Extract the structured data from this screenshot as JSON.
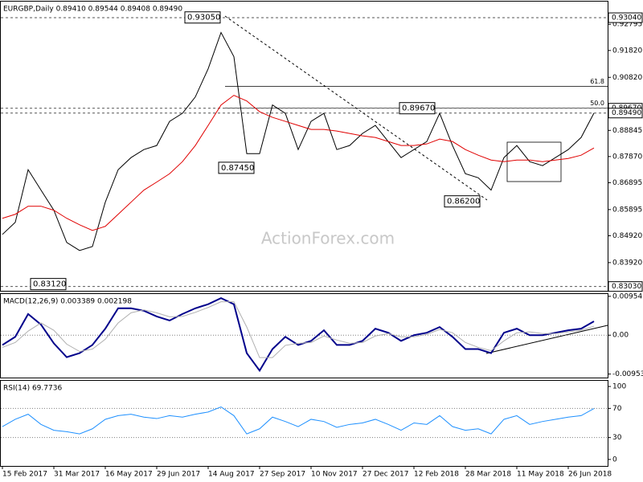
{
  "chart_data": [
    {
      "type": "line",
      "title": "EURGBP,Daily  0.89410 0.89544 0.89408 0.89490",
      "watermark": "ActionForex.com",
      "categories": [
        "15 Feb 2017",
        null,
        null,
        null,
        "31 Mar 2017",
        null,
        null,
        null,
        "16 May 2017",
        null,
        null,
        null,
        "29 Jun 2017",
        null,
        null,
        null,
        "14 Aug 2017",
        null,
        null,
        null,
        "27 Sep 2017",
        null,
        null,
        null,
        "10 Nov 2017",
        null,
        null,
        null,
        "27 Dec 2017",
        null,
        null,
        null,
        "12 Feb 2018",
        null,
        null,
        null,
        "28 Mar 2018",
        null,
        null,
        null,
        "11 May 2018",
        null,
        null,
        null,
        "26 Jun 2018",
        null,
        null
      ],
      "series": [
        {
          "color": "#000000",
          "values": [
            0.8497,
            0.8542,
            0.8738,
            0.8662,
            0.8587,
            0.8467,
            0.8437,
            0.8452,
            0.8617,
            0.8738,
            0.8783,
            0.8813,
            0.8828,
            0.8918,
            0.8948,
            0.9009,
            0.9114,
            0.9249,
            0.9159,
            0.8798,
            0.8798,
            0.8979,
            0.8948,
            0.8813,
            0.8918,
            0.8948,
            0.8813,
            0.8828,
            0.8873,
            0.8903,
            0.8843,
            0.8783,
            0.8813,
            0.8843,
            0.8948,
            0.8828,
            0.8723,
            0.8708,
            0.8662,
            0.8783,
            0.8828,
            0.8768,
            0.8753,
            0.8783,
            0.8813,
            0.8858,
            0.8949
          ]
        },
        {
          "color": "#e00000",
          "values": [
            0.8557,
            0.8572,
            0.8602,
            0.8602,
            0.8587,
            0.8557,
            0.8533,
            0.8512,
            0.8527,
            0.8572,
            0.8617,
            0.8662,
            0.8692,
            0.8723,
            0.8768,
            0.8828,
            0.8903,
            0.8979,
            0.9015,
            0.8994,
            0.8954,
            0.8933,
            0.8918,
            0.8903,
            0.8888,
            0.8888,
            0.8882,
            0.8873,
            0.8864,
            0.8858,
            0.8843,
            0.8828,
            0.8828,
            0.8834,
            0.8852,
            0.8843,
            0.8813,
            0.8792,
            0.8774,
            0.8768,
            0.8774,
            0.8774,
            0.8768,
            0.8774,
            0.878,
            0.8792,
            0.8819
          ]
        }
      ],
      "ylim": [
        0.8287,
        0.9364
      ],
      "yticks": [
        {
          "value": 0.92795,
          "label": "0.92795"
        },
        {
          "value": 0.9182,
          "label": "0.91820"
        },
        {
          "value": 0.9082,
          "label": "0.90820"
        },
        0.88845,
        {
          "value": 0.8787,
          "label": "0.87870"
        },
        0.86895,
        0.85895,
        {
          "value": 0.8492,
          "label": "0.84920"
        },
        {
          "value": 0.8392,
          "label": "0.83920"
        }
      ],
      "price_labels": [
        {
          "value": 0.9304,
          "label": "0.93040"
        },
        {
          "value": 0.8967,
          "label": "0.89670"
        },
        {
          "value": 0.8949,
          "label": "0.89490"
        },
        {
          "value": 0.8303,
          "label": "0.83030"
        }
      ],
      "annotations": [
        {
          "value": 0.9305,
          "label": "0.93050"
        },
        {
          "value": 0.8967,
          "label": "0.89670"
        },
        {
          "value": 0.8745,
          "label": "0.87450"
        },
        {
          "value": 0.862,
          "label": "0.86200"
        },
        {
          "value": 0.8312,
          "label": "0.83120"
        }
      ],
      "fib": [
        {
          "label": "61.8",
          "price": 0.9048
        },
        {
          "label": "50.0",
          "price": 0.8967
        }
      ]
    },
    {
      "type": "line",
      "title": "MACD(12,26,9) 0.003389 0.002198",
      "series": [
        {
          "color": "#00008b",
          "values": [
            -0.0024,
            -0.0004,
            0.0052,
            0.0026,
            -0.002,
            -0.0054,
            -0.0044,
            -0.0024,
            0.0016,
            0.0066,
            0.0066,
            0.006,
            0.0046,
            0.0036,
            0.0052,
            0.0066,
            0.0076,
            0.0091,
            0.0076,
            -0.0044,
            -0.0087,
            -0.0034,
            -0.0004,
            -0.0024,
            -0.0014,
            0.0012,
            -0.0024,
            -0.0024,
            -0.0014,
            0.0016,
            0.0006,
            -0.0014,
            0,
            0.0006,
            0.002,
            -0.0004,
            -0.0034,
            -0.0034,
            -0.0044,
            0.0006,
            0.0016,
            0,
            0,
            0.0006,
            0.0012,
            0.0016,
            0.0034
          ]
        },
        {
          "color": "#b0b0b0",
          "values": [
            -0.003,
            -0.0018,
            0.001,
            0.003,
            0.0012,
            -0.0022,
            -0.004,
            -0.0034,
            -0.001,
            0.003,
            0.0055,
            0.0062,
            0.0055,
            0.0045,
            0.0046,
            0.0056,
            0.0068,
            0.0082,
            0.0082,
            0.002,
            -0.0055,
            -0.0055,
            -0.0025,
            -0.002,
            -0.0018,
            -0.0002,
            -0.0012,
            -0.002,
            -0.0018,
            -0.0002,
            0.0004,
            -0.0004,
            -0.0004,
            0.0002,
            0.0014,
            0.0006,
            -0.0018,
            -0.003,
            -0.0038,
            -0.0014,
            0.0006,
            0.0008,
            0.0004,
            0.0004,
            0.0008,
            0.0012,
            0.0022
          ]
        }
      ],
      "ylim": [
        -0.0104,
        0.0101
      ],
      "yticks": [
        0.00954,
        {
          "value": 0,
          "label": "0.00"
        },
        -0.009538
      ],
      "levels": [
        0
      ]
    },
    {
      "type": "line",
      "title": "RSI(14) 69.7736",
      "series": [
        {
          "color": "#1e90ff",
          "values": [
            45,
            55,
            62,
            48,
            40,
            38,
            35,
            42,
            55,
            60,
            62,
            58,
            56,
            60,
            58,
            62,
            65,
            72,
            60,
            35,
            42,
            58,
            52,
            45,
            55,
            52,
            44,
            48,
            50,
            55,
            48,
            40,
            50,
            48,
            60,
            45,
            40,
            42,
            35,
            55,
            60,
            48,
            52,
            55,
            58,
            60,
            69.7736
          ]
        }
      ],
      "ylim": [
        -8.9,
        107.8
      ],
      "yticks": [
        100,
        70,
        30,
        0
      ],
      "levels": [
        70,
        30
      ]
    }
  ]
}
